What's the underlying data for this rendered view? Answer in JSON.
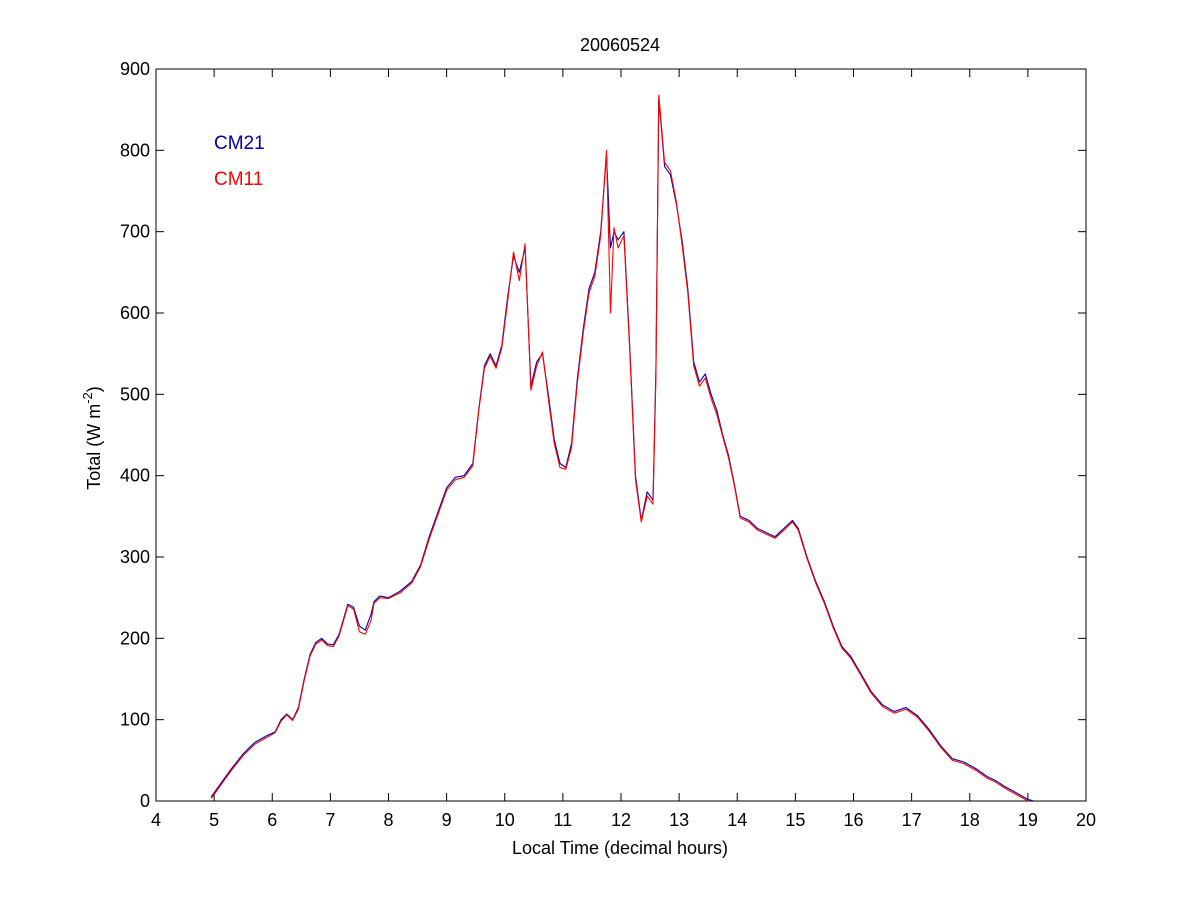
{
  "chart_data": {
    "type": "line",
    "title": "20060524",
    "xlabel": "Local Time (decimal hours)",
    "ylabel": "Total (W m⁻²)",
    "ylabel_parts": {
      "main": "Total (W m",
      "sup": "-2",
      "close": ")"
    },
    "xlim": [
      4,
      20
    ],
    "ylim": [
      0,
      900
    ],
    "xticks": [
      4,
      5,
      6,
      7,
      8,
      9,
      10,
      11,
      12,
      13,
      14,
      15,
      16,
      17,
      18,
      19,
      20
    ],
    "yticks": [
      0,
      100,
      200,
      300,
      400,
      500,
      600,
      700,
      800,
      900
    ],
    "grid": false,
    "legend_placement": "top-left",
    "series": [
      {
        "name": "CM21",
        "color": "#0000aa",
        "x": [
          4.95,
          5.1,
          5.3,
          5.5,
          5.7,
          5.9,
          6.05,
          6.15,
          6.25,
          6.35,
          6.45,
          6.55,
          6.65,
          6.75,
          6.85,
          6.95,
          7.05,
          7.15,
          7.3,
          7.4,
          7.5,
          7.6,
          7.7,
          7.75,
          7.85,
          8.0,
          8.2,
          8.4,
          8.55,
          8.7,
          8.85,
          9.0,
          9.15,
          9.3,
          9.45,
          9.55,
          9.65,
          9.75,
          9.85,
          9.95,
          10.05,
          10.15,
          10.25,
          10.35,
          10.45,
          10.55,
          10.65,
          10.75,
          10.85,
          10.95,
          11.05,
          11.15,
          11.25,
          11.35,
          11.45,
          11.55,
          11.65,
          11.75,
          11.82,
          11.88,
          11.95,
          12.05,
          12.15,
          12.25,
          12.35,
          12.45,
          12.55,
          12.6,
          12.65,
          12.75,
          12.85,
          12.95,
          13.05,
          13.15,
          13.25,
          13.35,
          13.45,
          13.55,
          13.65,
          13.75,
          13.85,
          13.95,
          14.05,
          14.2,
          14.35,
          14.5,
          14.65,
          14.8,
          14.95,
          15.05,
          15.2,
          15.35,
          15.5,
          15.65,
          15.8,
          15.95,
          16.1,
          16.3,
          16.5,
          16.7,
          16.9,
          17.1,
          17.3,
          17.5,
          17.7,
          17.9,
          18.1,
          18.3,
          18.45,
          18.6,
          18.8,
          19.0,
          19.2,
          19.35
        ],
        "y": [
          5,
          20,
          40,
          58,
          72,
          80,
          85,
          100,
          107,
          100,
          115,
          150,
          180,
          195,
          200,
          193,
          192,
          205,
          242,
          238,
          215,
          210,
          230,
          245,
          252,
          250,
          258,
          270,
          290,
          325,
          355,
          385,
          398,
          400,
          415,
          480,
          535,
          550,
          535,
          560,
          620,
          670,
          650,
          680,
          510,
          540,
          550,
          500,
          445,
          415,
          410,
          440,
          520,
          580,
          630,
          650,
          700,
          795,
          680,
          700,
          690,
          700,
          560,
          400,
          345,
          380,
          370,
          530,
          865,
          780,
          770,
          735,
          690,
          630,
          540,
          515,
          525,
          500,
          480,
          450,
          425,
          390,
          350,
          345,
          335,
          330,
          325,
          335,
          345,
          335,
          300,
          270,
          245,
          215,
          190,
          178,
          160,
          135,
          118,
          110,
          115,
          105,
          88,
          68,
          52,
          48,
          40,
          30,
          25,
          18,
          10,
          2,
          -2,
          -3
        ]
      },
      {
        "name": "CM11",
        "color": "#ff0000",
        "x": [
          4.95,
          5.1,
          5.3,
          5.5,
          5.7,
          5.9,
          6.05,
          6.15,
          6.25,
          6.35,
          6.45,
          6.55,
          6.65,
          6.75,
          6.85,
          6.95,
          7.05,
          7.15,
          7.3,
          7.4,
          7.5,
          7.6,
          7.7,
          7.75,
          7.85,
          8.0,
          8.2,
          8.4,
          8.55,
          8.7,
          8.85,
          9.0,
          9.15,
          9.3,
          9.45,
          9.55,
          9.65,
          9.75,
          9.85,
          9.95,
          10.05,
          10.15,
          10.25,
          10.35,
          10.45,
          10.55,
          10.65,
          10.75,
          10.85,
          10.95,
          11.05,
          11.15,
          11.25,
          11.35,
          11.45,
          11.55,
          11.65,
          11.75,
          11.82,
          11.88,
          11.95,
          12.05,
          12.15,
          12.25,
          12.35,
          12.45,
          12.55,
          12.6,
          12.65,
          12.75,
          12.85,
          12.95,
          13.05,
          13.15,
          13.25,
          13.35,
          13.45,
          13.55,
          13.65,
          13.75,
          13.85,
          13.95,
          14.05,
          14.2,
          14.35,
          14.5,
          14.65,
          14.8,
          14.95,
          15.05,
          15.2,
          15.35,
          15.5,
          15.65,
          15.8,
          15.95,
          16.1,
          16.3,
          16.5,
          16.7,
          16.9,
          17.1,
          17.3,
          17.5,
          17.7,
          17.9,
          18.1,
          18.3,
          18.45,
          18.6,
          18.8,
          19.0,
          19.2,
          19.35
        ],
        "y": [
          3,
          18,
          38,
          56,
          70,
          78,
          84,
          98,
          106,
          99,
          113,
          148,
          178,
          193,
          198,
          191,
          190,
          203,
          240,
          236,
          208,
          205,
          222,
          243,
          250,
          249,
          256,
          268,
          288,
          322,
          352,
          382,
          395,
          398,
          412,
          478,
          532,
          547,
          532,
          557,
          615,
          675,
          640,
          685,
          505,
          535,
          552,
          495,
          440,
          410,
          408,
          435,
          515,
          575,
          625,
          645,
          695,
          800,
          600,
          705,
          680,
          695,
          555,
          395,
          343,
          375,
          365,
          520,
          868,
          785,
          775,
          738,
          685,
          625,
          535,
          510,
          520,
          495,
          475,
          448,
          422,
          388,
          348,
          343,
          333,
          328,
          323,
          333,
          343,
          333,
          298,
          268,
          243,
          213,
          188,
          176,
          158,
          133,
          116,
          108,
          113,
          103,
          86,
          66,
          50,
          46,
          38,
          28,
          23,
          16,
          8,
          0,
          -3,
          -3
        ]
      }
    ]
  }
}
